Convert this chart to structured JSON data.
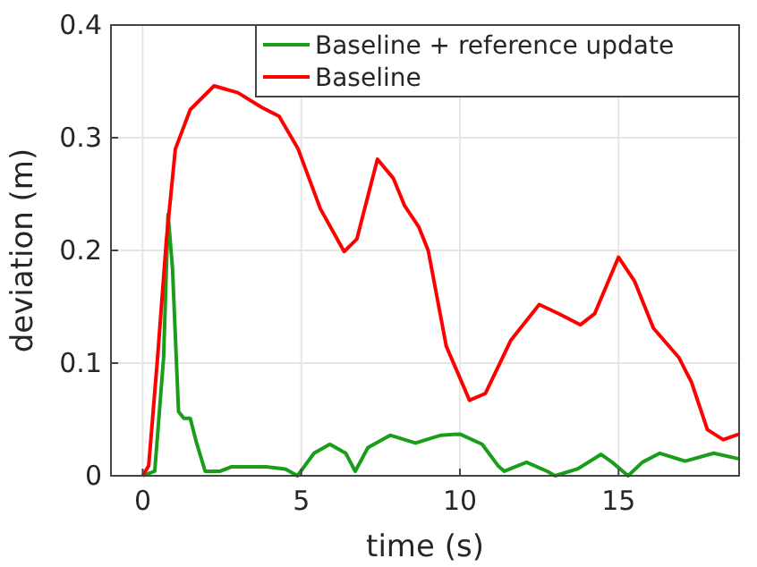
{
  "chart_data": {
    "type": "line",
    "xlabel": "time (s)",
    "ylabel": "deviation (m)",
    "xlim": [
      -1,
      18.8
    ],
    "ylim": [
      0,
      0.4
    ],
    "xticks": [
      0,
      5,
      10,
      15
    ],
    "yticks": [
      0,
      0.1,
      0.2,
      0.3,
      0.4
    ],
    "grid": true,
    "legend": "top right",
    "series": [
      {
        "name": "Baseline + reference update",
        "color": "#1a9e1a",
        "x": [
          0,
          0.38,
          0.66,
          0.8,
          0.94,
          1.13,
          1.3,
          1.5,
          1.69,
          1.97,
          2.44,
          2.8,
          3.9,
          4.5,
          4.88,
          5.4,
          5.9,
          6.4,
          6.7,
          7.1,
          7.8,
          8.6,
          9.4,
          10.0,
          10.7,
          11.2,
          11.4,
          12.1,
          12.75,
          13.0,
          13.7,
          14.45,
          14.8,
          15.3,
          15.75,
          16.3,
          17.1,
          18.0,
          18.8
        ],
        "values": [
          0,
          0.004,
          0.105,
          0.232,
          0.184,
          0.057,
          0.051,
          0.051,
          0.03,
          0.004,
          0.004,
          0.008,
          0.008,
          0.006,
          0,
          0.02,
          0.028,
          0.02,
          0.004,
          0.025,
          0.036,
          0.029,
          0.036,
          0.037,
          0.028,
          0.009,
          0.004,
          0.012,
          0.004,
          0,
          0.006,
          0.019,
          0.012,
          0,
          0.012,
          0.02,
          0.013,
          0.02,
          0.015
        ]
      },
      {
        "name": "Baseline",
        "color": "#ff0000",
        "x": [
          0,
          0.19,
          0.47,
          0.75,
          1.03,
          1.5,
          2.25,
          3.0,
          3.75,
          4.3,
          4.9,
          5.6,
          6.35,
          6.75,
          7.4,
          7.9,
          8.25,
          8.7,
          9.0,
          9.57,
          10.3,
          10.8,
          11.6,
          12.5,
          13.1,
          13.8,
          14.25,
          15.0,
          15.5,
          16.1,
          16.9,
          17.3,
          17.8,
          18.3,
          18.8
        ],
        "values": [
          0,
          0.009,
          0.105,
          0.21,
          0.29,
          0.325,
          0.346,
          0.34,
          0.327,
          0.319,
          0.29,
          0.237,
          0.199,
          0.21,
          0.281,
          0.264,
          0.24,
          0.221,
          0.2,
          0.115,
          0.067,
          0.073,
          0.12,
          0.152,
          0.144,
          0.134,
          0.144,
          0.194,
          0.173,
          0.131,
          0.105,
          0.083,
          0.041,
          0.032,
          0.037
        ]
      }
    ]
  }
}
